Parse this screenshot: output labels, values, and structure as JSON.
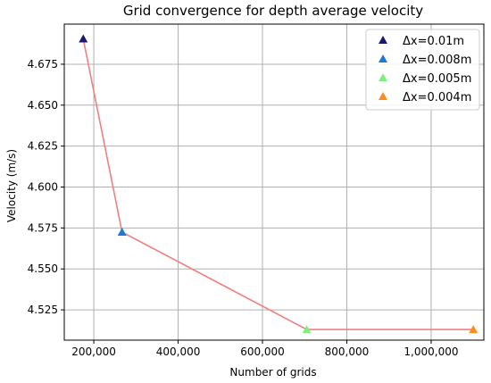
{
  "chart_data": {
    "type": "scatter",
    "title": "Grid convergence for depth average velocity",
    "xlabel": "Number of grids",
    "ylabel": "Velocity (m/s)",
    "xlim": [
      130000,
      1125000
    ],
    "ylim": [
      4.5065,
      4.6995
    ],
    "xticks": [
      200000,
      400000,
      600000,
      800000,
      1000000
    ],
    "xtick_labels": [
      "200,000",
      "400,000",
      "600,000",
      "800,000",
      "1,000,000"
    ],
    "yticks": [
      4.525,
      4.55,
      4.575,
      4.6,
      4.625,
      4.65,
      4.675
    ],
    "ytick_labels": [
      "4.525",
      "4.550",
      "4.575",
      "4.600",
      "4.625",
      "4.650",
      "4.675"
    ],
    "grid": true,
    "legend_position": "top-right",
    "line_color": "#f08080",
    "series": [
      {
        "name": "Δx=0.01m",
        "x": [
          175000
        ],
        "y": [
          4.6905
        ],
        "color": "#191970"
      },
      {
        "name": "Δx=0.008m",
        "x": [
          267000
        ],
        "y": [
          4.5725
        ],
        "color": "#1e78d6"
      },
      {
        "name": "Δx=0.005m",
        "x": [
          705000
        ],
        "y": [
          4.513
        ],
        "color": "#7ef07e"
      },
      {
        "name": "Δx=0.004m",
        "x": [
          1100000
        ],
        "y": [
          4.513
        ],
        "color": "#ff8c1a"
      }
    ]
  }
}
